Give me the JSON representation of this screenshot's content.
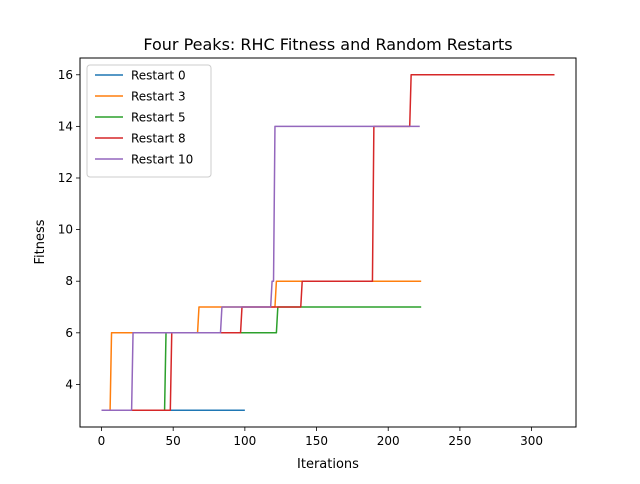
{
  "chart_data": {
    "type": "line",
    "title": "Four Peaks: RHC Fitness and Random Restarts",
    "xlabel": "Iterations",
    "ylabel": "Fitness",
    "xlim": [
      -15,
      331
    ],
    "ylim": [
      2.35,
      16.65
    ],
    "xticks": [
      0,
      50,
      100,
      150,
      200,
      250,
      300
    ],
    "yticks": [
      4,
      6,
      8,
      10,
      12,
      14,
      16
    ],
    "grid": false,
    "legend_position": "top-left",
    "series": [
      {
        "name": "Restart 0",
        "color": "#1f77b4",
        "points": [
          [
            0,
            3
          ],
          [
            100,
            3
          ]
        ]
      },
      {
        "name": "Restart 3",
        "color": "#ff7f0e",
        "points": [
          [
            0,
            3
          ],
          [
            6,
            3
          ],
          [
            7,
            6
          ],
          [
            67,
            6
          ],
          [
            68,
            7
          ],
          [
            121,
            7
          ],
          [
            122,
            8
          ],
          [
            223,
            8
          ]
        ]
      },
      {
        "name": "Restart 5",
        "color": "#2ca02c",
        "points": [
          [
            0,
            3
          ],
          [
            44,
            3
          ],
          [
            45,
            6
          ],
          [
            122,
            6
          ],
          [
            123,
            7
          ],
          [
            223,
            7
          ]
        ]
      },
      {
        "name": "Restart 8",
        "color": "#d62728",
        "points": [
          [
            0,
            3
          ],
          [
            48,
            3
          ],
          [
            49,
            6
          ],
          [
            59,
            6
          ],
          [
            85,
            6
          ],
          [
            97,
            6
          ],
          [
            98,
            7
          ],
          [
            139,
            7
          ],
          [
            140,
            8
          ],
          [
            189,
            8
          ],
          [
            190,
            14
          ],
          [
            215,
            14
          ],
          [
            216,
            16
          ],
          [
            316,
            16
          ]
        ]
      },
      {
        "name": "Restart 10",
        "color": "#9467bd",
        "points": [
          [
            0,
            3
          ],
          [
            21,
            3
          ],
          [
            22,
            6
          ],
          [
            83,
            6
          ],
          [
            84,
            7
          ],
          [
            118,
            7
          ],
          [
            119,
            8
          ],
          [
            120,
            8
          ],
          [
            121,
            14
          ],
          [
            222,
            14
          ]
        ]
      }
    ]
  }
}
